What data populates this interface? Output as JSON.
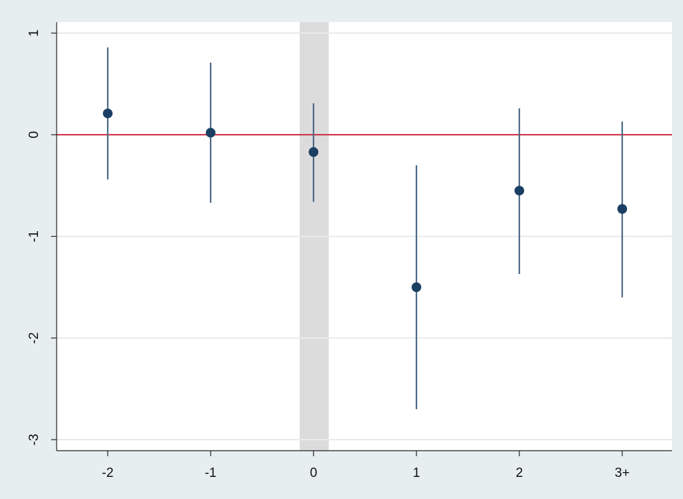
{
  "chart_data": {
    "type": "scatter",
    "x_tick_labels": [
      "-2",
      "-1",
      "0",
      "1",
      "2",
      "3+"
    ],
    "y_ticks": [
      1,
      0,
      -1,
      -2,
      -3
    ],
    "y_tick_labels": [
      "1",
      "0",
      "-1",
      "-2",
      "-3"
    ],
    "ylim": [
      -3.11,
      1.11
    ],
    "grid": true,
    "reference_line_y": 0,
    "shaded_category": "0",
    "series": [
      {
        "points": [
          {
            "x": "-2",
            "y": 0.21,
            "lower": -0.44,
            "upper": 0.86
          },
          {
            "x": "-1",
            "y": 0.02,
            "lower": -0.67,
            "upper": 0.71
          },
          {
            "x": "0",
            "y": -0.17,
            "lower": -0.66,
            "upper": 0.31
          },
          {
            "x": "1",
            "y": -1.5,
            "lower": -2.7,
            "upper": -0.3
          },
          {
            "x": "2",
            "y": -0.55,
            "lower": -1.37,
            "upper": 0.26
          },
          {
            "x": "3+",
            "y": -0.73,
            "lower": -1.6,
            "upper": 0.13
          }
        ]
      }
    ]
  },
  "colors": {
    "frame_background": "#e7eef0",
    "plot_background": "#ffffff",
    "gridline": "#e6ebec",
    "axis": "#222222",
    "reference_line": "#c8102e",
    "shade": "#dcdcdc",
    "marker": "#1a3f63",
    "error_bar": "#4e6a87"
  }
}
